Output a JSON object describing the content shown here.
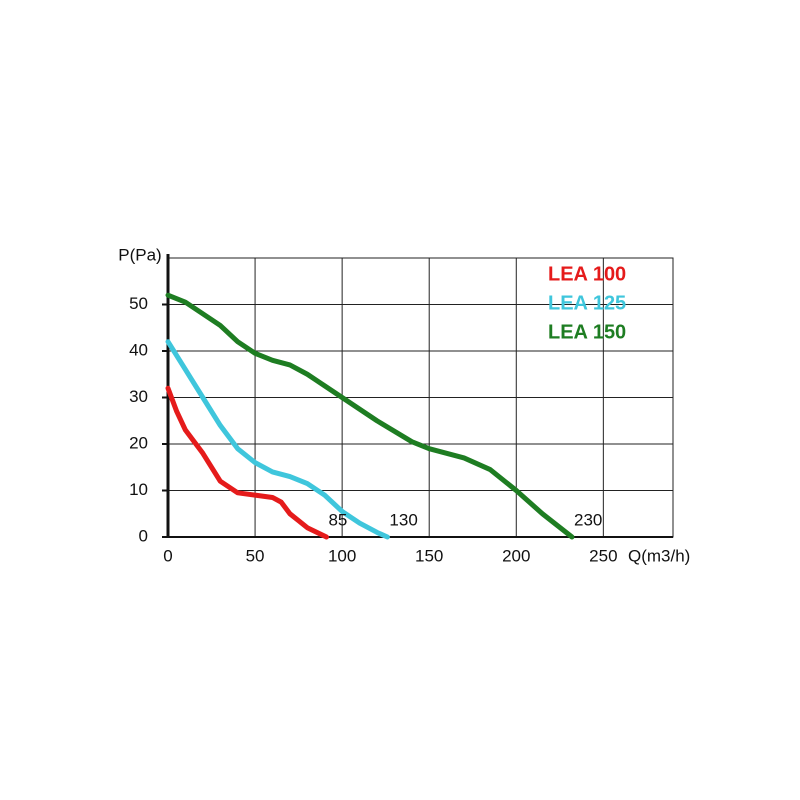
{
  "chart_data": {
    "type": "line",
    "x_label": "Q(m3/h)",
    "y_label": "P(Pa)",
    "xlim": [
      0,
      290
    ],
    "xticks": [
      0,
      50,
      100,
      150,
      200,
      250
    ],
    "ylim": [
      0,
      60
    ],
    "yticks": [
      0,
      10,
      20,
      30,
      40,
      50
    ],
    "grid": true,
    "legend": "top-right",
    "annotations": [
      "85",
      "130",
      "230"
    ],
    "series": [
      {
        "name": "LEA 100",
        "color": "#e51b1b",
        "x": [
          0,
          5,
          10,
          20,
          30,
          40,
          50,
          60,
          65,
          70,
          75,
          80,
          91
        ],
        "values": [
          32,
          27,
          23,
          18,
          12,
          9.5,
          9,
          8.5,
          7.5,
          5,
          3.5,
          2,
          0
        ]
      },
      {
        "name": "LEA 125",
        "color": "#3fc6dc",
        "x": [
          0,
          10,
          20,
          30,
          40,
          50,
          60,
          70,
          80,
          90,
          100,
          110,
          120,
          126
        ],
        "values": [
          42,
          36,
          30,
          24,
          19,
          16,
          14,
          13,
          11.5,
          9,
          5.5,
          3,
          1,
          0
        ]
      },
      {
        "name": "LEA 150",
        "color": "#1e7d22",
        "x": [
          0,
          10,
          20,
          30,
          40,
          50,
          60,
          70,
          80,
          90,
          100,
          120,
          140,
          150,
          170,
          185,
          200,
          215,
          232
        ],
        "values": [
          52,
          50.5,
          48,
          45.5,
          42,
          39.5,
          38,
          37,
          35,
          32.5,
          30,
          25,
          20.5,
          19,
          17,
          14.5,
          10,
          5,
          0
        ]
      }
    ]
  }
}
